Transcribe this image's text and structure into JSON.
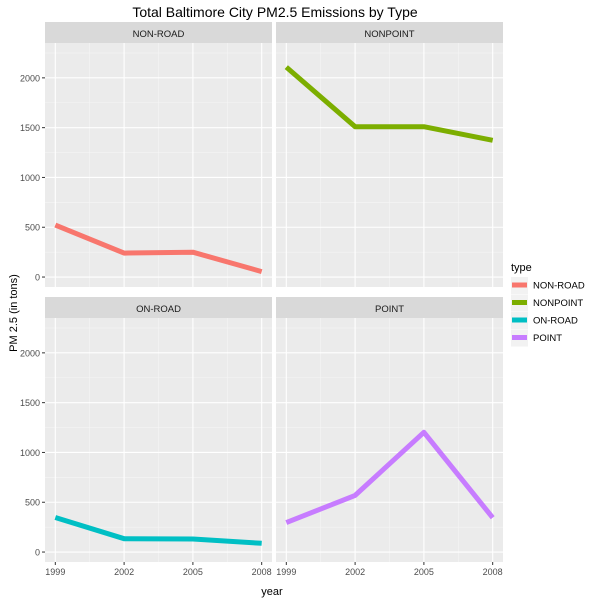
{
  "chart_data": {
    "type": "line",
    "title": "Total Baltimore City PM2.5 Emissions by Type",
    "xlabel": "year",
    "ylabel": "PM 2.5 (in tons)",
    "x": [
      1999,
      2002,
      2005,
      2008
    ],
    "x_ticks": [
      "1999",
      "2002",
      "2005",
      "2008"
    ],
    "y_ticks": [
      0,
      500,
      1000,
      1500,
      2000
    ],
    "ylim": [
      -100,
      2350
    ],
    "grid": true,
    "legend": {
      "title": "type",
      "placement": "right",
      "entries": [
        "NON-ROAD",
        "NONPOINT",
        "ON-ROAD",
        "POINT"
      ]
    },
    "facets": [
      "NON-ROAD",
      "NONPOINT",
      "ON-ROAD",
      "POINT"
    ],
    "series": [
      {
        "name": "NON-ROAD",
        "color": "#F8766D",
        "values": [
          522,
          240,
          249,
          55
        ]
      },
      {
        "name": "NONPOINT",
        "color": "#7CAE00",
        "values": [
          2108,
          1510,
          1510,
          1373
        ]
      },
      {
        "name": "ON-ROAD",
        "color": "#00BFC4",
        "values": [
          347,
          134,
          131,
          88
        ]
      },
      {
        "name": "POINT",
        "color": "#C77CFF",
        "values": [
          296,
          569,
          1202,
          345
        ]
      }
    ]
  }
}
